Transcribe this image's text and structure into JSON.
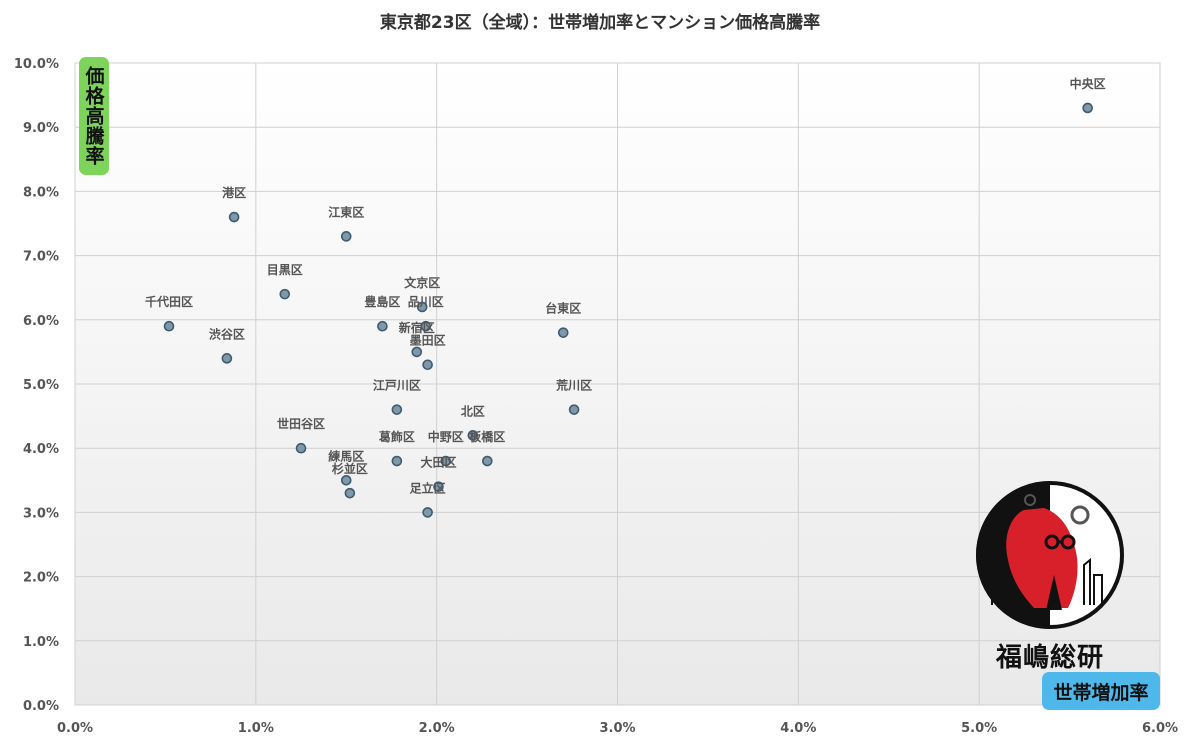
{
  "chart_data": {
    "type": "scatter",
    "title": "東京都23区（全域）：世帯増加率とマンション価格高騰率",
    "xlabel": "世帯増加率",
    "ylabel": "価格高騰率",
    "xlim": [
      0,
      6.0
    ],
    "ylim": [
      0,
      10.0
    ],
    "xticks": [
      "0.0%",
      "1.0%",
      "2.0%",
      "3.0%",
      "4.0%",
      "5.0%",
      "6.0%"
    ],
    "yticks": [
      "0.0%",
      "1.0%",
      "2.0%",
      "3.0%",
      "4.0%",
      "5.0%",
      "6.0%",
      "7.0%",
      "8.0%",
      "9.0%",
      "10.0%"
    ],
    "grid": true,
    "points": [
      {
        "label": "中央区",
        "x": 5.6,
        "y": 9.3
      },
      {
        "label": "港区",
        "x": 0.88,
        "y": 7.6
      },
      {
        "label": "江東区",
        "x": 1.5,
        "y": 7.3
      },
      {
        "label": "目黒区",
        "x": 1.16,
        "y": 6.4
      },
      {
        "label": "千代田区",
        "x": 0.52,
        "y": 5.9
      },
      {
        "label": "渋谷区",
        "x": 0.84,
        "y": 5.4
      },
      {
        "label": "文京区",
        "x": 1.92,
        "y": 6.2
      },
      {
        "label": "豊島区",
        "x": 1.7,
        "y": 5.9
      },
      {
        "label": "品川区",
        "x": 1.94,
        "y": 5.9
      },
      {
        "label": "新宿区",
        "x": 1.89,
        "y": 5.5
      },
      {
        "label": "墨田区",
        "x": 1.95,
        "y": 5.3
      },
      {
        "label": "台東区",
        "x": 2.7,
        "y": 5.8
      },
      {
        "label": "江戸川区",
        "x": 1.78,
        "y": 4.6
      },
      {
        "label": "荒川区",
        "x": 2.76,
        "y": 4.6
      },
      {
        "label": "北区",
        "x": 2.2,
        "y": 4.2
      },
      {
        "label": "世田谷区",
        "x": 1.25,
        "y": 4.0
      },
      {
        "label": "葛飾区",
        "x": 1.78,
        "y": 3.8
      },
      {
        "label": "中野区",
        "x": 2.05,
        "y": 3.8
      },
      {
        "label": "板橋区",
        "x": 2.28,
        "y": 3.8
      },
      {
        "label": "大田区",
        "x": 2.01,
        "y": 3.4
      },
      {
        "label": "練馬区",
        "x": 1.5,
        "y": 3.5
      },
      {
        "label": "杉並区",
        "x": 1.52,
        "y": 3.3
      },
      {
        "label": "足立区",
        "x": 1.95,
        "y": 3.0
      }
    ]
  },
  "logo": {
    "text": "福嶋総研",
    "colors": {
      "red": "#d8202a",
      "black": "#111111",
      "white": "#ffffff"
    }
  },
  "colors": {
    "point_fill": "#7f98aa",
    "point_stroke": "#3f5b70",
    "ylabel_badge": "#7ed35b",
    "xlabel_badge": "#4fb8ea"
  }
}
